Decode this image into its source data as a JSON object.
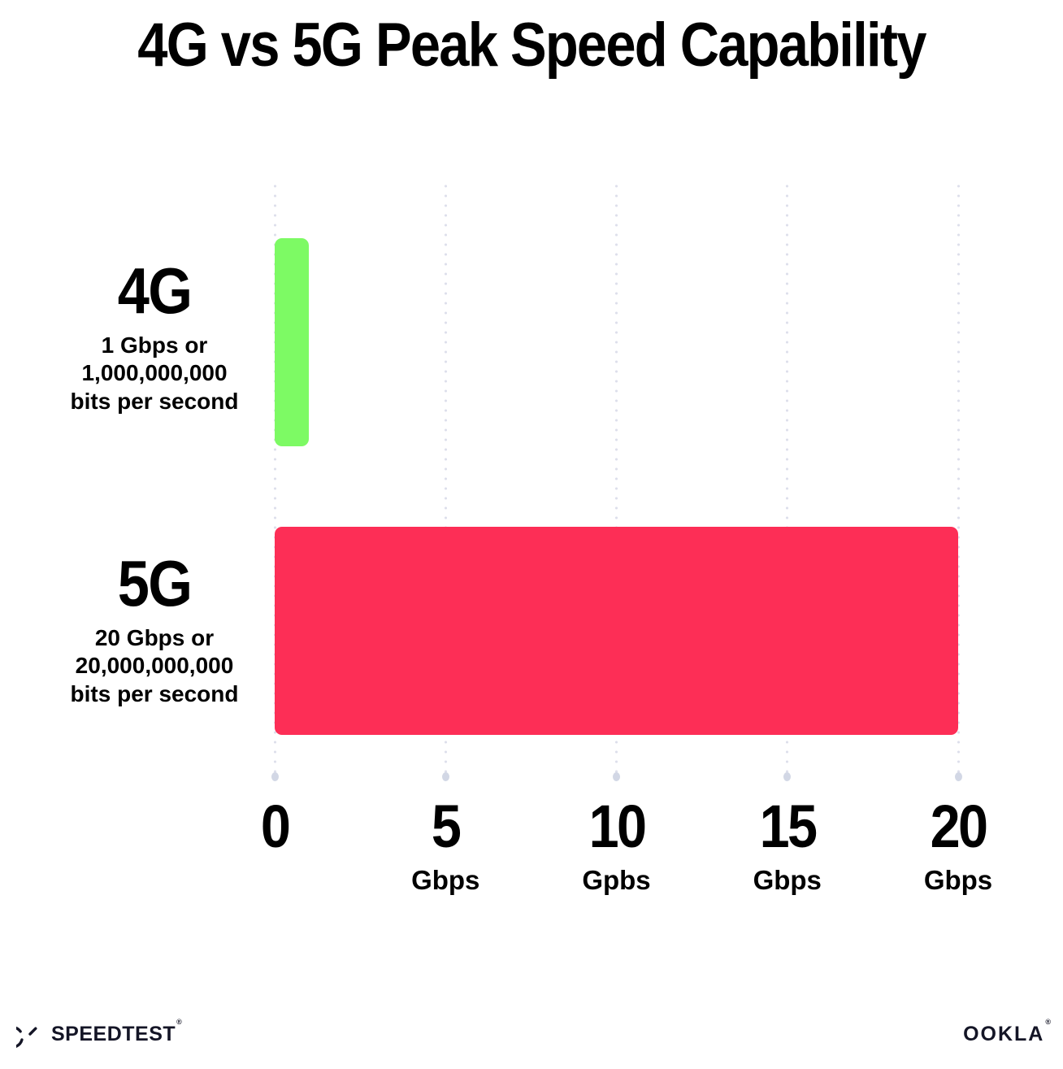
{
  "chart_data": {
    "type": "bar",
    "orientation": "horizontal",
    "title": "4G vs 5G Peak Speed Capability",
    "categories": [
      "4G",
      "5G"
    ],
    "values": [
      1,
      20
    ],
    "bar_colors": [
      "#7dfa64",
      "#fd2e56"
    ],
    "category_sublabels": [
      [
        "1 Gbps or",
        "1,000,000,000",
        "bits per second"
      ],
      [
        "20 Gbps or",
        "20,000,000,000",
        "bits per second"
      ]
    ],
    "xlabel_units": "Gbps",
    "xlim": [
      0,
      20
    ],
    "xticks": [
      {
        "value": 0,
        "label": "0",
        "unit": ""
      },
      {
        "value": 5,
        "label": "5",
        "unit": "Gbps"
      },
      {
        "value": 10,
        "label": "10",
        "unit": "Gpbs"
      },
      {
        "value": 15,
        "label": "15",
        "unit": "Gbps"
      },
      {
        "value": 20,
        "label": "20",
        "unit": "Gbps"
      }
    ],
    "grid": "dotted-vertical",
    "legend": "none"
  },
  "footer": {
    "speedtest_text": "SPEEDTEST",
    "speedtest_mark": "®",
    "ookla_text": "OOKLA",
    "ookla_mark": "®"
  },
  "colors": {
    "background": "#ffffff",
    "title_text": "#000000",
    "bar_4g": "#7dfa64",
    "bar_5g": "#fd2e56",
    "grid_dot": "#dddfeb",
    "grid_end_dot": "#d2d7e5",
    "footer_text": "#141526"
  }
}
